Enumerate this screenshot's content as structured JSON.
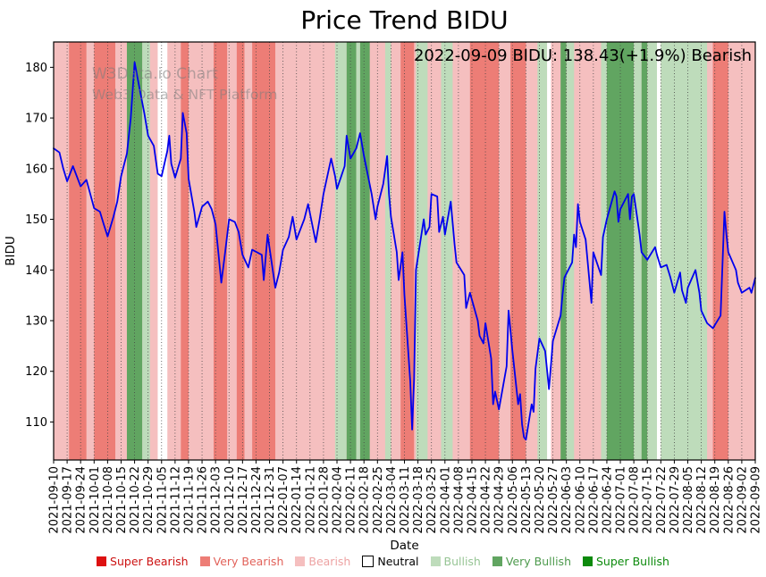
{
  "title": "Price Trend BIDU",
  "annotation": "2022-09-09 BIDU: 138.43(+1.9%) Bearish",
  "watermark": {
    "line1": "W3Data.io Chart",
    "line2": "Web3 Data & NFT Platform"
  },
  "chart_data": {
    "type": "line",
    "title": "Price Trend BIDU",
    "xlabel": "Date",
    "ylabel": "BIDU",
    "x_range": [
      "2021-09-10",
      "2022-09-09"
    ],
    "ylim": [
      102.5,
      185
    ],
    "yticks": [
      110,
      120,
      130,
      140,
      150,
      160,
      170,
      180
    ],
    "grid": "vertical-dotted",
    "line_color": "#0000ee",
    "xtick_labels": [
      "2021-09-10",
      "2021-09-17",
      "2021-09-24",
      "2021-10-01",
      "2021-10-08",
      "2021-10-15",
      "2021-10-22",
      "2021-10-29",
      "2021-11-05",
      "2021-11-12",
      "2021-11-19",
      "2021-11-26",
      "2021-12-03",
      "2021-12-10",
      "2021-12-17",
      "2021-12-24",
      "2021-12-31",
      "2022-01-07",
      "2022-01-14",
      "2022-01-21",
      "2022-01-28",
      "2022-02-04",
      "2022-02-11",
      "2022-02-18",
      "2022-02-25",
      "2022-03-04",
      "2022-03-11",
      "2022-03-18",
      "2022-03-25",
      "2022-04-01",
      "2022-04-08",
      "2022-04-15",
      "2022-04-22",
      "2022-04-29",
      "2022-05-06",
      "2022-05-13",
      "2022-05-20",
      "2022-05-27",
      "2022-06-03",
      "2022-06-10",
      "2022-06-17",
      "2022-06-24",
      "2022-07-01",
      "2022-07-08",
      "2022-07-15",
      "2022-07-22",
      "2022-07-29",
      "2022-08-05",
      "2022-08-12",
      "2022-08-19",
      "2022-08-26",
      "2022-09-02",
      "2022-09-09"
    ],
    "series": [
      {
        "name": "BIDU",
        "x": [
          "2021-09-10",
          "2021-09-13",
          "2021-09-15",
          "2021-09-17",
          "2021-09-20",
          "2021-09-22",
          "2021-09-24",
          "2021-09-27",
          "2021-09-29",
          "2021-10-01",
          "2021-10-04",
          "2021-10-06",
          "2021-10-08",
          "2021-10-11",
          "2021-10-13",
          "2021-10-15",
          "2021-10-18",
          "2021-10-20",
          "2021-10-22",
          "2021-10-25",
          "2021-10-27",
          "2021-10-29",
          "2021-11-01",
          "2021-11-03",
          "2021-11-05",
          "2021-11-08",
          "2021-11-09",
          "2021-11-10",
          "2021-11-12",
          "2021-11-15",
          "2021-11-16",
          "2021-11-18",
          "2021-11-19",
          "2021-11-22",
          "2021-11-23",
          "2021-11-26",
          "2021-11-29",
          "2021-12-01",
          "2021-12-03",
          "2021-12-06",
          "2021-12-08",
          "2021-12-10",
          "2021-12-13",
          "2021-12-15",
          "2021-12-17",
          "2021-12-20",
          "2021-12-22",
          "2021-12-27",
          "2021-12-28",
          "2021-12-30",
          "2022-01-03",
          "2022-01-05",
          "2022-01-07",
          "2022-01-10",
          "2022-01-12",
          "2022-01-14",
          "2022-01-18",
          "2022-01-20",
          "2022-01-24",
          "2022-01-26",
          "2022-01-28",
          "2022-02-01",
          "2022-02-03",
          "2022-02-04",
          "2022-02-08",
          "2022-02-09",
          "2022-02-11",
          "2022-02-14",
          "2022-02-16",
          "2022-02-18",
          "2022-02-22",
          "2022-02-24",
          "2022-02-25",
          "2022-02-28",
          "2022-03-02",
          "2022-03-03",
          "2022-03-04",
          "2022-03-07",
          "2022-03-08",
          "2022-03-10",
          "2022-03-11",
          "2022-03-14",
          "2022-03-15",
          "2022-03-16",
          "2022-03-17",
          "2022-03-21",
          "2022-03-22",
          "2022-03-24",
          "2022-03-25",
          "2022-03-28",
          "2022-03-29",
          "2022-03-31",
          "2022-04-01",
          "2022-04-04",
          "2022-04-06",
          "2022-04-07",
          "2022-04-11",
          "2022-04-12",
          "2022-04-14",
          "2022-04-18",
          "2022-04-19",
          "2022-04-21",
          "2022-04-22",
          "2022-04-25",
          "2022-04-26",
          "2022-04-27",
          "2022-04-29",
          "2022-05-03",
          "2022-05-04",
          "2022-05-06",
          "2022-05-09",
          "2022-05-10",
          "2022-05-11",
          "2022-05-12",
          "2022-05-13",
          "2022-05-16",
          "2022-05-17",
          "2022-05-18",
          "2022-05-20",
          "2022-05-23",
          "2022-05-25",
          "2022-05-27",
          "2022-05-31",
          "2022-06-01",
          "2022-06-02",
          "2022-06-06",
          "2022-06-07",
          "2022-06-08",
          "2022-06-09",
          "2022-06-10",
          "2022-06-13",
          "2022-06-16",
          "2022-06-17",
          "2022-06-21",
          "2022-06-22",
          "2022-06-24",
          "2022-06-28",
          "2022-06-29",
          "2022-06-30",
          "2022-07-01",
          "2022-07-05",
          "2022-07-06",
          "2022-07-07",
          "2022-07-08",
          "2022-07-11",
          "2022-07-12",
          "2022-07-15",
          "2022-07-19",
          "2022-07-20",
          "2022-07-22",
          "2022-07-25",
          "2022-07-27",
          "2022-07-29",
          "2022-08-01",
          "2022-08-02",
          "2022-08-04",
          "2022-08-05",
          "2022-08-09",
          "2022-08-11",
          "2022-08-12",
          "2022-08-15",
          "2022-08-18",
          "2022-08-22",
          "2022-08-24",
          "2022-08-25",
          "2022-08-26",
          "2022-08-30",
          "2022-08-31",
          "2022-09-02",
          "2022-09-06",
          "2022-09-07",
          "2022-09-09"
        ],
        "y": [
          164.0,
          163.2,
          160.0,
          157.5,
          160.5,
          158.5,
          156.5,
          157.8,
          155.0,
          152.2,
          151.5,
          149.0,
          146.6,
          150.5,
          153.5,
          158.5,
          163.0,
          170.0,
          181.0,
          175.0,
          171.0,
          166.5,
          164.5,
          159.0,
          158.5,
          163.5,
          166.5,
          161.0,
          158.2,
          162.0,
          171.0,
          167.0,
          158.0,
          151.5,
          148.5,
          152.5,
          153.5,
          152.0,
          149.0,
          137.5,
          143.5,
          150.0,
          149.5,
          147.5,
          143.0,
          140.5,
          144.0,
          143.0,
          138.0,
          147.0,
          136.5,
          139.5,
          144.0,
          146.5,
          150.5,
          146.0,
          150.0,
          153.0,
          145.5,
          150.0,
          155.0,
          162.0,
          158.5,
          156.0,
          160.5,
          166.5,
          162.0,
          164.0,
          167.0,
          162.5,
          155.0,
          150.0,
          152.5,
          157.0,
          162.5,
          155.0,
          150.5,
          143.5,
          138.0,
          143.5,
          135.0,
          118.0,
          108.5,
          118.5,
          140.0,
          150.0,
          147.0,
          148.5,
          155.0,
          154.5,
          147.5,
          150.5,
          147.0,
          153.5,
          145.0,
          141.5,
          139.0,
          132.5,
          135.5,
          130.0,
          127.0,
          125.5,
          129.5,
          122.5,
          113.5,
          116.0,
          112.5,
          121.0,
          132.0,
          124.0,
          113.5,
          115.5,
          109.5,
          107.0,
          106.5,
          113.5,
          112.0,
          120.5,
          126.5,
          124.0,
          116.5,
          126.0,
          131.0,
          135.0,
          138.5,
          141.5,
          147.0,
          144.5,
          153.0,
          149.5,
          146.0,
          133.5,
          143.5,
          139.0,
          146.5,
          150.0,
          155.5,
          154.5,
          149.5,
          152.0,
          155.0,
          150.0,
          154.5,
          155.0,
          147.0,
          143.5,
          142.0,
          144.5,
          143.0,
          140.5,
          141.0,
          138.5,
          135.5,
          139.5,
          136.0,
          133.5,
          136.5,
          140.0,
          135.5,
          132.0,
          129.5,
          128.5,
          131.0,
          151.5,
          147.0,
          143.5,
          140.0,
          137.5,
          135.5,
          136.5,
          135.5,
          138.43
        ]
      }
    ],
    "bands": {
      "base_level": "bearish",
      "levels": {
        "super_bearish": "#dd1111",
        "very_bearish": "#ed7d76",
        "bearish": "#f5bfbf",
        "neutral": "#ffffff",
        "bullish": "#bedcbb",
        "very_bullish": "#61a561",
        "super_bullish": "#0c8a0c"
      },
      "overlays": [
        {
          "start": "2021-09-18",
          "end": "2021-09-27",
          "level": "very_bearish"
        },
        {
          "start": "2021-10-01",
          "end": "2021-10-12",
          "level": "very_bearish"
        },
        {
          "start": "2021-10-18",
          "end": "2021-10-26",
          "level": "very_bullish"
        },
        {
          "start": "2021-10-26",
          "end": "2021-10-30",
          "level": "bullish"
        },
        {
          "start": "2021-11-03",
          "end": "2021-11-08",
          "level": "neutral"
        },
        {
          "start": "2021-11-15",
          "end": "2021-11-19",
          "level": "very_bearish"
        },
        {
          "start": "2021-12-02",
          "end": "2021-12-09",
          "level": "very_bearish"
        },
        {
          "start": "2021-12-14",
          "end": "2021-12-18",
          "level": "very_bearish"
        },
        {
          "start": "2021-12-22",
          "end": "2022-01-03",
          "level": "very_bearish"
        },
        {
          "start": "2022-02-03",
          "end": "2022-02-09",
          "level": "bullish"
        },
        {
          "start": "2022-02-09",
          "end": "2022-02-14",
          "level": "very_bullish"
        },
        {
          "start": "2022-02-14",
          "end": "2022-02-16",
          "level": "bullish"
        },
        {
          "start": "2022-02-16",
          "end": "2022-02-21",
          "level": "very_bullish"
        },
        {
          "start": "2022-03-01",
          "end": "2022-03-04",
          "level": "bullish"
        },
        {
          "start": "2022-03-09",
          "end": "2022-03-16",
          "level": "very_bearish"
        },
        {
          "start": "2022-03-17",
          "end": "2022-03-23",
          "level": "bullish"
        },
        {
          "start": "2022-03-30",
          "end": "2022-04-05",
          "level": "bullish"
        },
        {
          "start": "2022-04-14",
          "end": "2022-04-29",
          "level": "very_bearish"
        },
        {
          "start": "2022-05-05",
          "end": "2022-05-13",
          "level": "very_bearish"
        },
        {
          "start": "2022-05-19",
          "end": "2022-05-24",
          "level": "bullish"
        },
        {
          "start": "2022-05-24",
          "end": "2022-05-26",
          "level": "neutral"
        },
        {
          "start": "2022-05-31",
          "end": "2022-06-03",
          "level": "very_bullish"
        },
        {
          "start": "2022-06-03",
          "end": "2022-06-07",
          "level": "bullish"
        },
        {
          "start": "2022-06-21",
          "end": "2022-06-24",
          "level": "bullish"
        },
        {
          "start": "2022-06-24",
          "end": "2022-07-08",
          "level": "very_bullish"
        },
        {
          "start": "2022-07-08",
          "end": "2022-07-12",
          "level": "bullish"
        },
        {
          "start": "2022-07-12",
          "end": "2022-07-15",
          "level": "very_bullish"
        },
        {
          "start": "2022-07-15",
          "end": "2022-07-20",
          "level": "bullish"
        },
        {
          "start": "2022-07-20",
          "end": "2022-07-22",
          "level": "neutral"
        },
        {
          "start": "2022-07-22",
          "end": "2022-08-15",
          "level": "bullish"
        },
        {
          "start": "2022-08-18",
          "end": "2022-08-26",
          "level": "very_bearish"
        }
      ]
    },
    "legend": [
      {
        "label": "Super Bearish",
        "color": "#dd1111",
        "text_color": "#cc1111"
      },
      {
        "label": "Very Bearish",
        "color": "#ed7d76",
        "text_color": "#e2625a"
      },
      {
        "label": "Bearish",
        "color": "#f5bfbf",
        "text_color": "#eda3a3"
      },
      {
        "label": "Neutral",
        "color": "#ffffff",
        "text_color": "#000000",
        "border": "#000000"
      },
      {
        "label": "Bullish",
        "color": "#bedcbb",
        "text_color": "#97c595"
      },
      {
        "label": "Very Bullish",
        "color": "#61a561",
        "text_color": "#4d9a4d"
      },
      {
        "label": "Super Bullish",
        "color": "#0c8a0c",
        "text_color": "#0c8a0c"
      }
    ],
    "legend_position": "bottom-center"
  }
}
